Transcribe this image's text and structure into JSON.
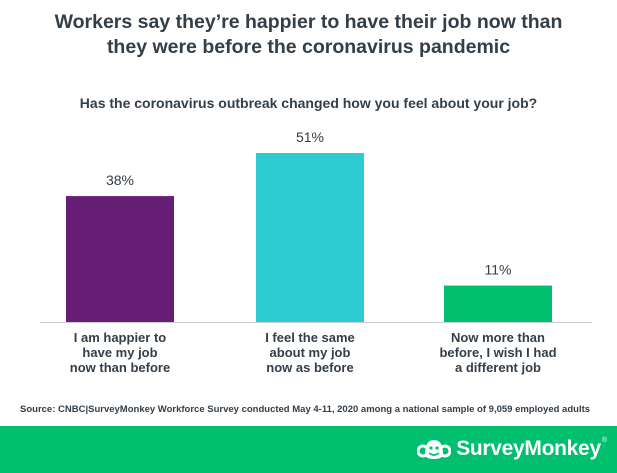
{
  "chart_data": {
    "type": "bar",
    "title_lines": [
      "Workers say they’re happier to have their job now than",
      "they were before the coronavirus pandemic"
    ],
    "subtitle": "Has the coronavirus outbreak changed how you feel about your job?",
    "categories": [
      [
        "I am happier to",
        "have my job",
        "now than before"
      ],
      [
        "I feel the same",
        "about my job",
        "now as before"
      ],
      [
        "Now more than",
        "before, I wish I had",
        "a different job"
      ]
    ],
    "values": [
      38,
      51,
      11
    ],
    "value_labels": [
      "38%",
      "51%",
      "11%"
    ],
    "colors": [
      "#671e75",
      "#2dccd3",
      "#00bf6f"
    ],
    "ylim": [
      0,
      51
    ],
    "grid": false,
    "xlabel": "",
    "ylabel": ""
  },
  "source": "Source: CNBC|SurveyMonkey Workforce Survey conducted May 4-11, 2020 among a national sample of 9,059 employed adults",
  "brand": {
    "name": "SurveyMonkey",
    "tm": "®",
    "logo_icon": "surveymonkey-logo-icon",
    "footer_color": "#00bf6f"
  }
}
